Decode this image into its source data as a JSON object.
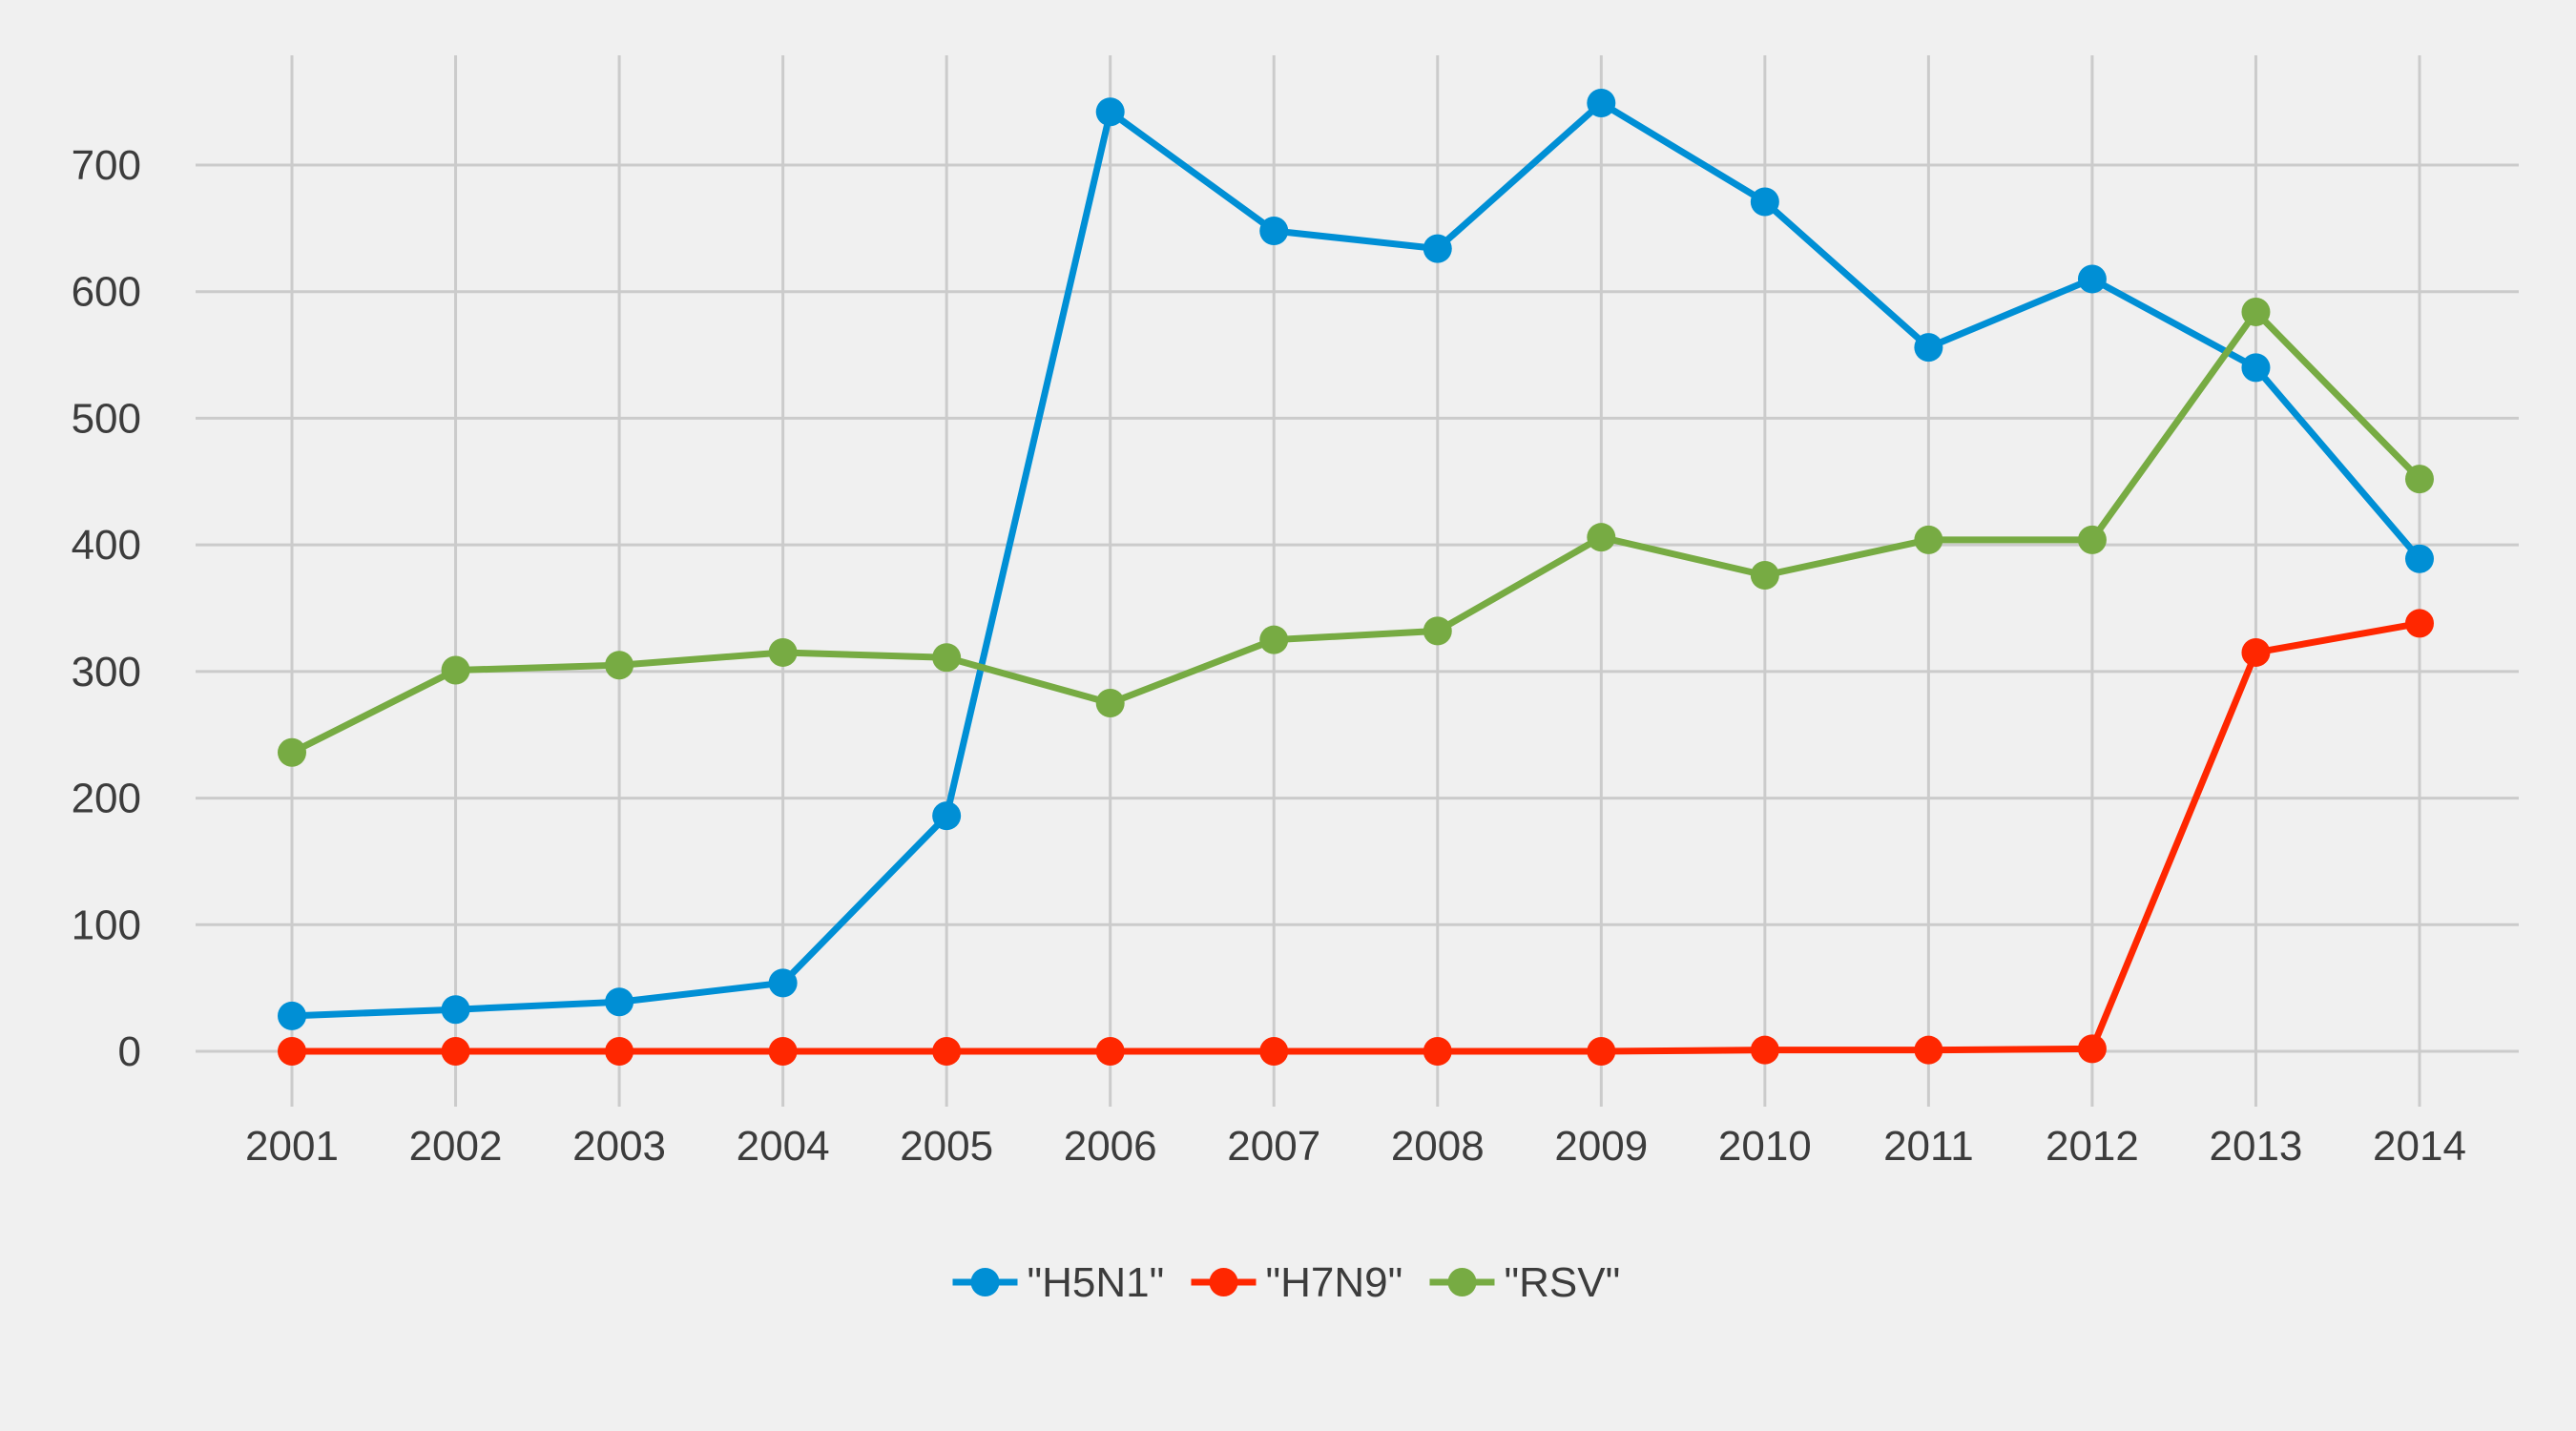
{
  "chart_data": {
    "type": "line",
    "title": "",
    "xlabel": "",
    "ylabel": "",
    "categories": [
      "2001",
      "2002",
      "2003",
      "2004",
      "2005",
      "2006",
      "2007",
      "2008",
      "2009",
      "2010",
      "2011",
      "2012",
      "2013",
      "2014"
    ],
    "yticks": [
      "0",
      "100",
      "200",
      "300",
      "400",
      "500",
      "600",
      "700"
    ],
    "ylim": [
      -30,
      785
    ],
    "grid": true,
    "legend_position": "bottom",
    "series": [
      {
        "name": "\"H5N1\"",
        "color": "#008FD5",
        "values": [
          28,
          33,
          39,
          54,
          186,
          742,
          648,
          634,
          749,
          671,
          556,
          610,
          540,
          389
        ]
      },
      {
        "name": "\"H7N9\"",
        "color": "#FF2700",
        "values": [
          0,
          0,
          0,
          0,
          0,
          0,
          0,
          0,
          0,
          1,
          1,
          2,
          315,
          338
        ]
      },
      {
        "name": "\"RSV\"",
        "color": "#77AB43",
        "values": [
          236,
          301,
          305,
          315,
          311,
          275,
          325,
          332,
          406,
          376,
          404,
          404,
          584,
          452
        ]
      }
    ]
  }
}
